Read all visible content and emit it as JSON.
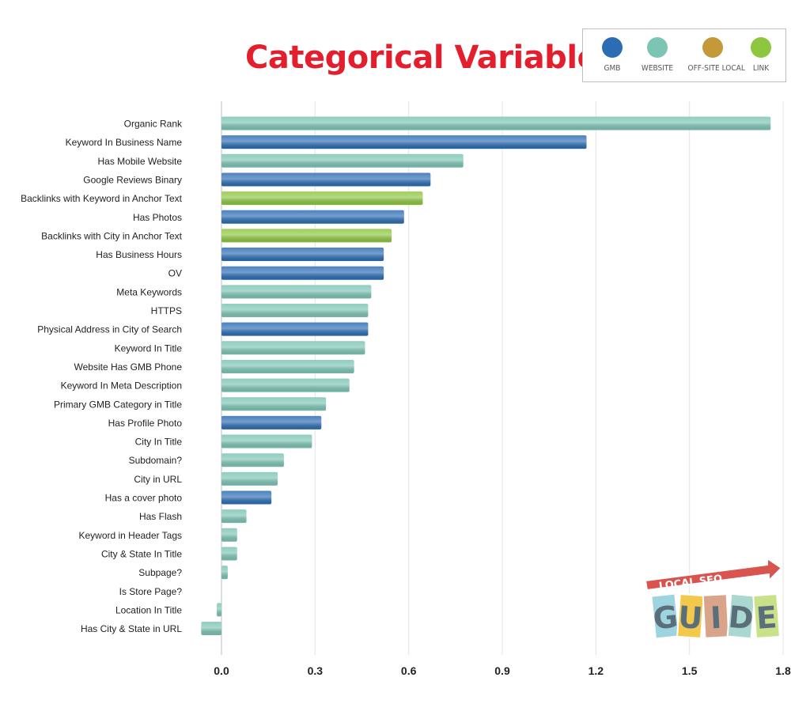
{
  "title": "Categorical Variables",
  "colors": {
    "GMB": "#2b6cb3",
    "WEBSITE": "#7cc4b4",
    "OFF-SITE LOCAL": "#c3993a",
    "LINK": "#8dc63f"
  },
  "legend": [
    {
      "label": "GMB",
      "color": "#2b6cb3"
    },
    {
      "label": "WEBSITE",
      "color": "#7cc4b4"
    },
    {
      "label": "OFF-SITE LOCAL",
      "color": "#c3993a"
    },
    {
      "label": "LINK",
      "color": "#8dc63f"
    }
  ],
  "logo": {
    "top_text": "LOCAL SEO",
    "letters": [
      "G",
      "U",
      "I",
      "D",
      "E"
    ]
  },
  "chart_data": {
    "type": "bar",
    "orientation": "horizontal",
    "title": "Categorical Variables",
    "xlabel": "",
    "ylabel": "",
    "xlim": [
      0,
      1.8
    ],
    "xticks": [
      "0.0",
      "0.3",
      "0.6",
      "0.9",
      "1.2",
      "1.5",
      "1.8"
    ],
    "grid": true,
    "legend_position": "top-right",
    "categories": [
      "Organic Rank",
      "Keyword In Business Name",
      "Has Mobile Website",
      "Google Reviews Binary",
      "Backlinks with Keyword in Anchor Text",
      "Has Photos",
      "Backlinks with City in Anchor Text",
      "Has Business Hours",
      "OV",
      "Meta Keywords",
      "HTTPS",
      "Physical Address in City of Search",
      "Keyword In Title",
      "Website Has GMB Phone",
      "Keyword In Meta Description",
      "Primary GMB Category in Title",
      "Has Profile Photo",
      "City In Title",
      "Subdomain?",
      "City in URL",
      "Has a cover photo",
      "Has Flash",
      "Keyword in Header Tags",
      "City & State In Title",
      "Subpage?",
      "Is Store Page?",
      "Location In Title",
      "Has City & State in URL"
    ],
    "values": [
      1.76,
      1.17,
      0.775,
      0.67,
      0.645,
      0.585,
      0.545,
      0.52,
      0.52,
      0.48,
      0.47,
      0.47,
      0.46,
      0.425,
      0.41,
      0.335,
      0.32,
      0.29,
      0.2,
      0.18,
      0.16,
      0.08,
      0.05,
      0.05,
      0.02,
      0.0,
      -0.015,
      -0.065
    ],
    "groups": [
      "WEBSITE",
      "GMB",
      "WEBSITE",
      "GMB",
      "LINK",
      "GMB",
      "LINK",
      "GMB",
      "GMB",
      "WEBSITE",
      "WEBSITE",
      "GMB",
      "WEBSITE",
      "WEBSITE",
      "WEBSITE",
      "WEBSITE",
      "GMB",
      "WEBSITE",
      "WEBSITE",
      "WEBSITE",
      "GMB",
      "WEBSITE",
      "WEBSITE",
      "WEBSITE",
      "WEBSITE",
      "WEBSITE",
      "WEBSITE",
      "WEBSITE"
    ]
  }
}
